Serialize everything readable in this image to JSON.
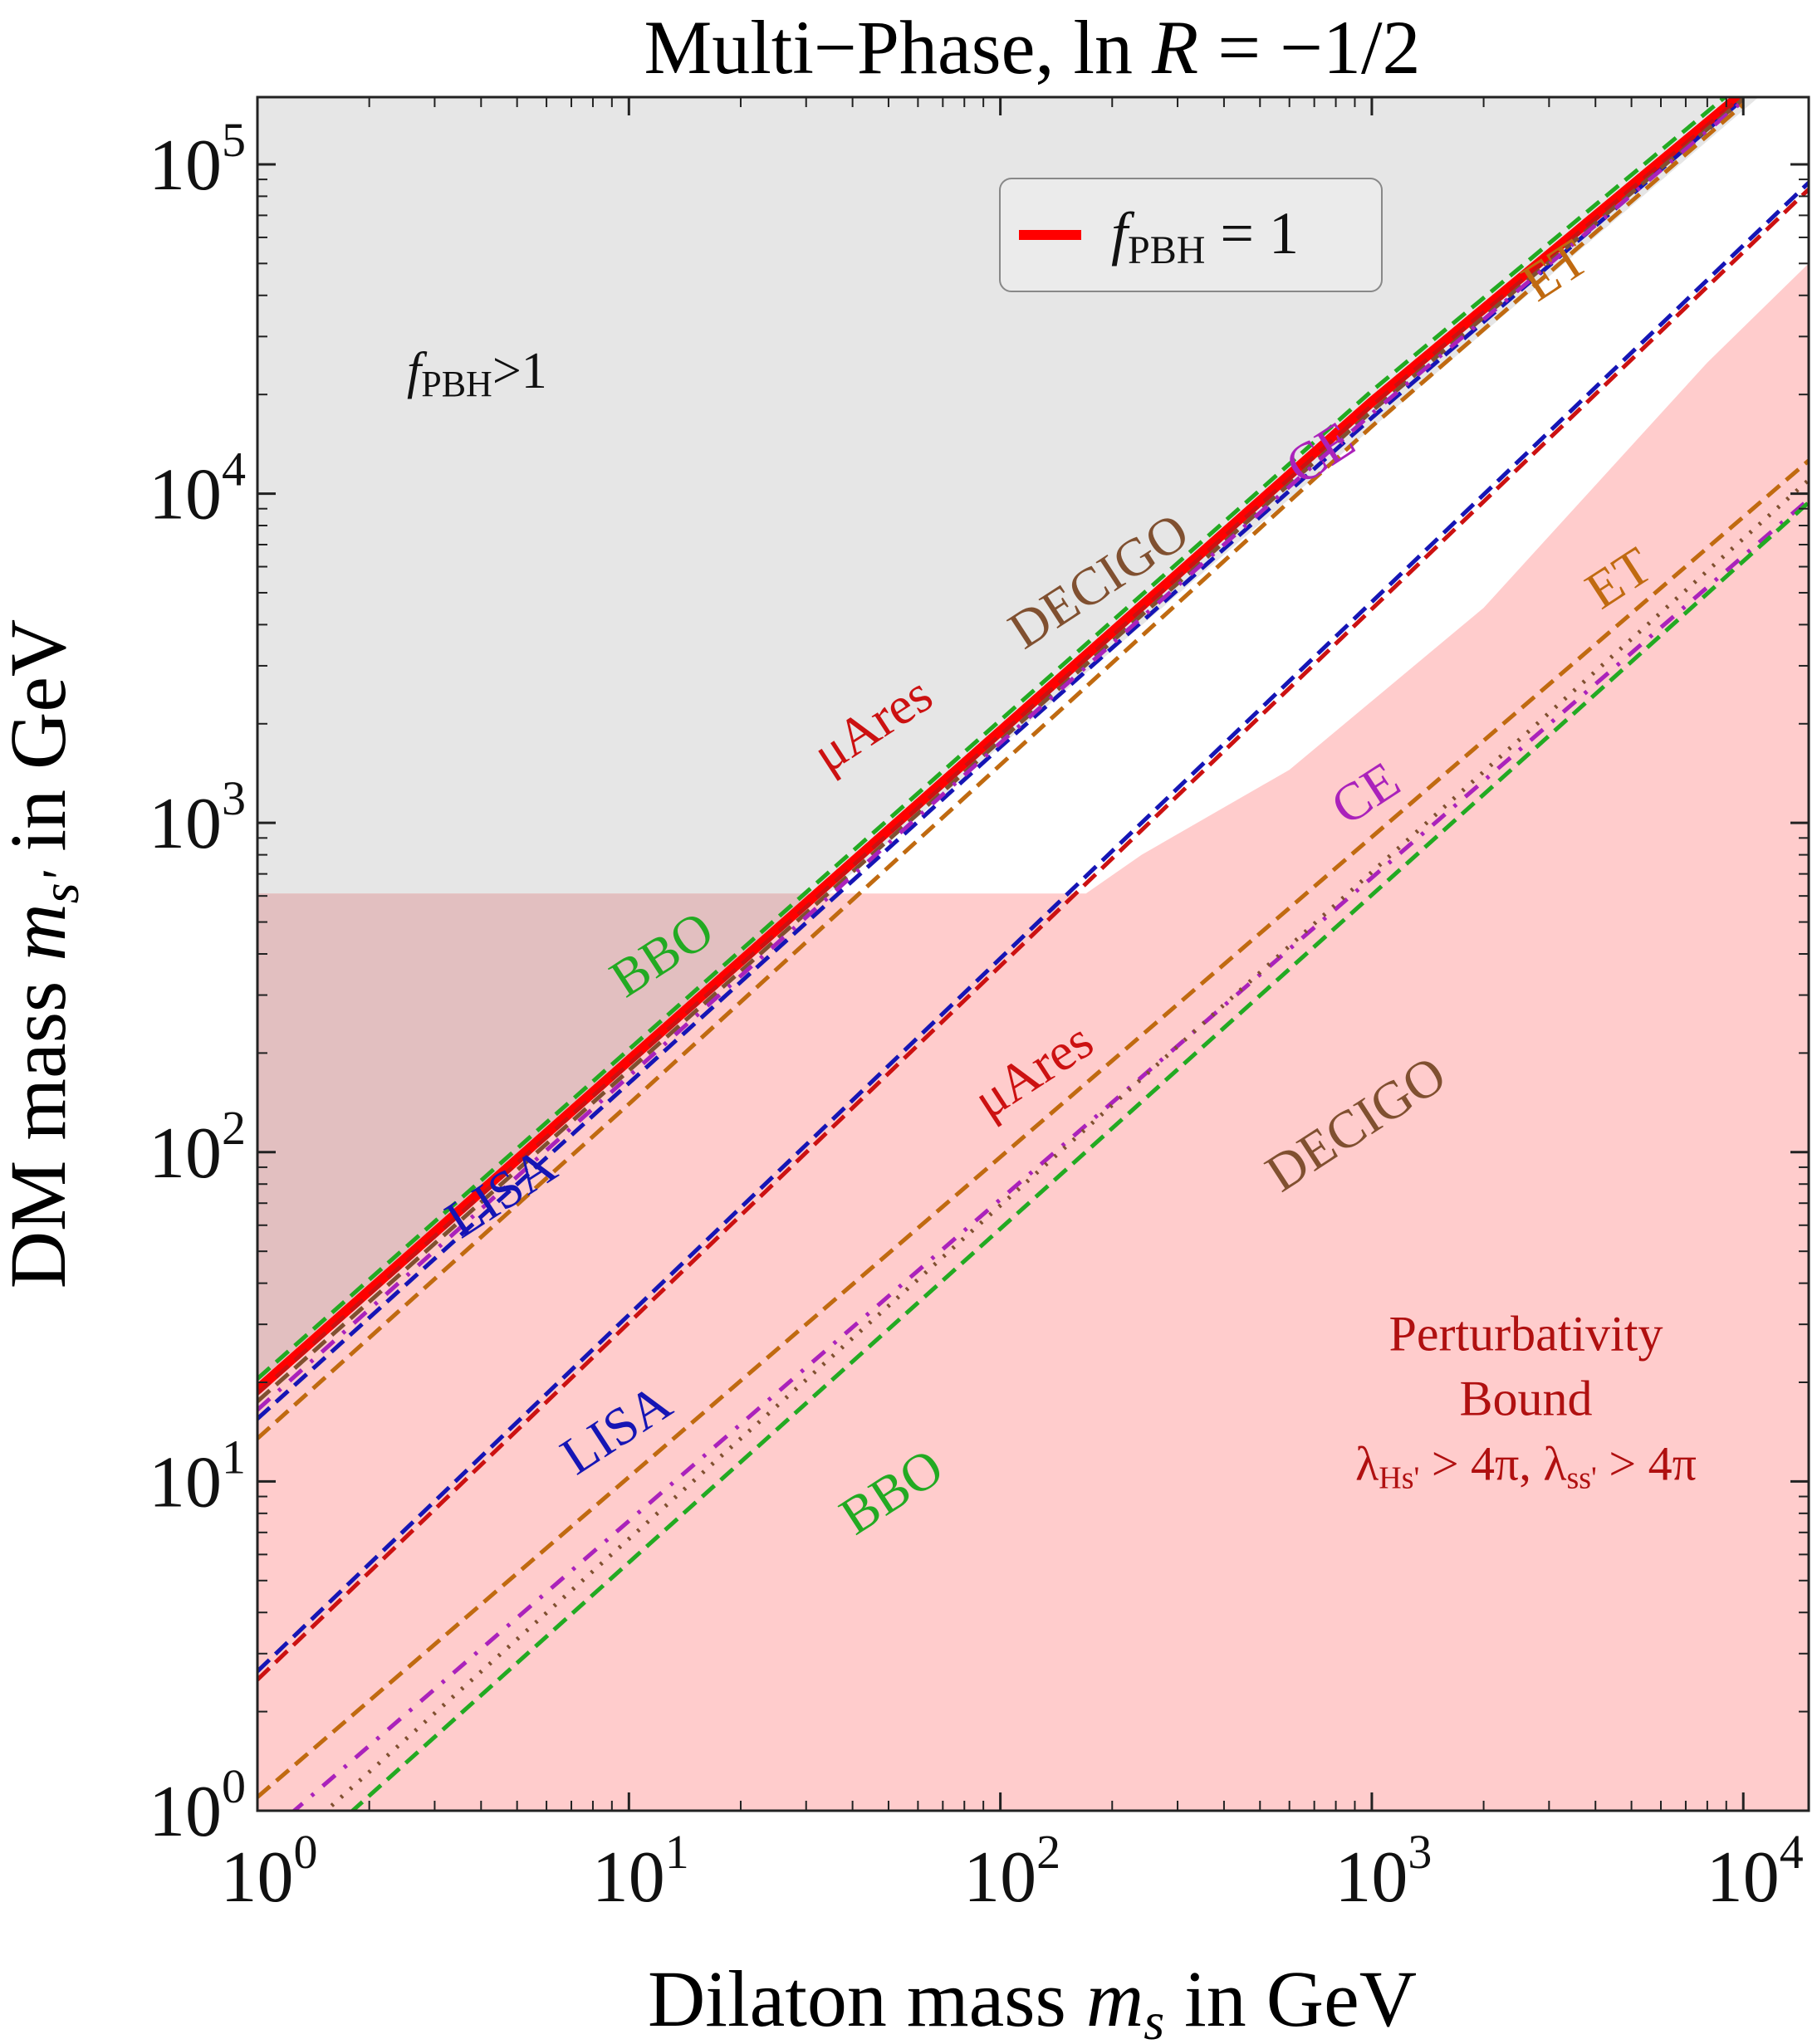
{
  "chart_data": {
    "type": "line",
    "title": "Multi−Phase, ln R = −1/2",
    "title_parts": {
      "prefix": "Multi−Phase, ln ",
      "var": "R",
      "suffix": " = −1/2"
    },
    "xlabel_parts": {
      "prefix": "Dilaton mass ",
      "var": "m",
      "sub": "s",
      "suffix": " in GeV"
    },
    "ylabel_parts": {
      "prefix": "DM mass ",
      "var": "m",
      "sub": "s'",
      "suffix": " in GeV"
    },
    "xscale": "log",
    "yscale": "log",
    "xlim": [
      1,
      15000
    ],
    "ylim": [
      1,
      160000
    ],
    "x_ticks": [
      {
        "value": 1,
        "base": "10",
        "exp": "0"
      },
      {
        "value": 10,
        "base": "10",
        "exp": "1"
      },
      {
        "value": 100,
        "base": "10",
        "exp": "2"
      },
      {
        "value": 1000,
        "base": "10",
        "exp": "3"
      },
      {
        "value": 10000,
        "base": "10",
        "exp": "4"
      }
    ],
    "y_ticks": [
      {
        "value": 1,
        "base": "10",
        "exp": "0"
      },
      {
        "value": 10,
        "base": "10",
        "exp": "1"
      },
      {
        "value": 100,
        "base": "10",
        "exp": "2"
      },
      {
        "value": 1000,
        "base": "10",
        "exp": "3"
      },
      {
        "value": 10000,
        "base": "10",
        "exp": "4"
      },
      {
        "value": 100000,
        "base": "10",
        "exp": "5"
      }
    ],
    "legend": {
      "position": "top-right",
      "entries": [
        {
          "var": "f",
          "sub": "PBH",
          "suffix": " = 1",
          "color": "#ff0000"
        }
      ]
    },
    "regions": [
      {
        "name": "fpbh-excluded",
        "label_var": "f",
        "label_sub": "PBH",
        "label_suffix": ">1",
        "label_at": [
          3.9,
          21000
        ],
        "color": "#e6e6e6",
        "polygon": [
          [
            1,
            20
          ],
          [
            1,
            160000
          ],
          [
            11000,
            160000
          ]
        ]
      },
      {
        "name": "perturbativity-bound",
        "label_lines": [
          "Perturbativity",
          "Bound"
        ],
        "label_math": "λHs' > 4π, λss' > 4π",
        "label_math_parts": {
          "a": "λ",
          "a_sub": "Hs'",
          "b": " > 4π, ",
          "c": "λ",
          "c_sub": "ss'",
          "d": " > 4π"
        },
        "label_at": [
          2600,
          25
        ],
        "color": "#ffcccc",
        "polygon": [
          [
            1,
            1
          ],
          [
            1,
            610
          ],
          [
            170,
            610
          ],
          [
            240,
            800
          ],
          [
            600,
            1450
          ],
          [
            2000,
            4500
          ],
          [
            8000,
            25000
          ],
          [
            15000,
            50000
          ],
          [
            15000,
            1
          ]
        ]
      }
    ],
    "series": [
      {
        "name": "fPBH = 1",
        "color": "#ff0000",
        "dash": "none",
        "width": 12,
        "x": [
          1,
          10,
          100,
          1000,
          10000
        ],
        "y": [
          19,
          190,
          1900,
          19000,
          165000
        ]
      },
      {
        "name": "BBO",
        "color": "#22aa22",
        "dash": "20 10",
        "width": 5,
        "x": [
          1,
          10,
          100,
          1000,
          10000
        ],
        "y": [
          20.5,
          205,
          2050,
          20500,
          178000
        ]
      },
      {
        "name": "LISA",
        "color": "#1515b5",
        "dash": "20 10",
        "width": 5,
        "x": [
          1,
          10,
          100,
          1000,
          10000
        ],
        "y": [
          15.5,
          162,
          1700,
          17000,
          158000
        ]
      },
      {
        "name": "μAres",
        "color": "#cc1111",
        "dash": "20 10",
        "width": 5,
        "x": [
          1,
          10,
          100,
          1000,
          10000
        ],
        "y": [
          18.5,
          185,
          1850,
          18500,
          162000
        ]
      },
      {
        "name": "DECIGO",
        "color": "#805030",
        "dash": "20 10",
        "width": 5,
        "x": [
          1,
          10,
          100,
          1000,
          10000
        ],
        "y": [
          17.5,
          177,
          1780,
          17800,
          158000
        ]
      },
      {
        "name": "CE",
        "color": "#aa22bb",
        "dash": "20 14 4 14",
        "width": 5,
        "x": [
          1,
          10,
          100,
          1000,
          10000
        ],
        "y": [
          16.5,
          170,
          1750,
          17500,
          156000
        ]
      },
      {
        "name": "ET",
        "color": "#c06a10",
        "dash": "20 10",
        "width": 5,
        "x": [
          1,
          10,
          100,
          1000,
          10000
        ],
        "y": [
          13.5,
          140,
          1500,
          16000,
          152000
        ]
      },
      {
        "name": "LISA",
        "color": "#1515b5",
        "dash": "20 10",
        "width": 5,
        "x": [
          1,
          15000
        ],
        "y": [
          2.65,
          88000
        ]
      },
      {
        "name": "μAres",
        "color": "#cc1111",
        "dash": "20 10",
        "width": 5,
        "x": [
          1,
          15000
        ],
        "y": [
          2.5,
          84000
        ]
      },
      {
        "name": "ET",
        "color": "#c06a10",
        "dash": "20 10",
        "width": 5,
        "x": [
          1,
          15000
        ],
        "y": [
          1.1,
          12600
        ]
      },
      {
        "name": "CE",
        "color": "#aa22bb",
        "dash": "20 14 4 14",
        "width": 5,
        "x": [
          1,
          15000
        ],
        "y": [
          0.8,
          9600
        ]
      },
      {
        "name": "DECIGO",
        "color": "#805030",
        "dash": "3 12",
        "width": 5,
        "x": [
          1,
          15000
        ],
        "y": [
          0.65,
          11000
        ]
      },
      {
        "name": "BBO",
        "color": "#22aa22",
        "dash": "20 10",
        "width": 5,
        "x": [
          1,
          15000
        ],
        "y": [
          0.55,
          9400
        ]
      }
    ],
    "annotations": [
      {
        "text": "LISA",
        "color": "#1515b5",
        "at": [
          4.8,
          68
        ],
        "angle": -33
      },
      {
        "text": "BBO",
        "color": "#22aa22",
        "at": [
          13,
          360
        ],
        "angle": -33
      },
      {
        "text": "μAres",
        "color": "#cc1111",
        "at": [
          48,
          1800
        ],
        "angle": -33
      },
      {
        "text": "DECIGO",
        "color": "#805030",
        "at": [
          195,
          4900
        ],
        "angle": -33
      },
      {
        "text": "CE",
        "color": "#aa22bb",
        "at": [
          770,
          12000
        ],
        "angle": -33
      },
      {
        "text": "ET",
        "color": "#c06a10",
        "at": [
          3300,
          43000
        ],
        "angle": -33
      },
      {
        "text": "LISA",
        "color": "#1515b5",
        "at": [
          9.8,
          13
        ],
        "angle": -33
      },
      {
        "text": "μAres",
        "color": "#cc1111",
        "at": [
          130,
          160
        ],
        "angle": -33
      },
      {
        "text": "BBO",
        "color": "#22aa22",
        "at": [
          54,
          8.4
        ],
        "angle": -33
      },
      {
        "text": "DECIGO",
        "color": "#805030",
        "at": [
          960,
          110
        ],
        "angle": -33
      },
      {
        "text": "CE",
        "color": "#aa22bb",
        "at": [
          1020,
          1110
        ],
        "angle": -33
      },
      {
        "text": "ET",
        "color": "#c06a10",
        "at": [
          4900,
          5000
        ],
        "angle": -33
      }
    ]
  }
}
